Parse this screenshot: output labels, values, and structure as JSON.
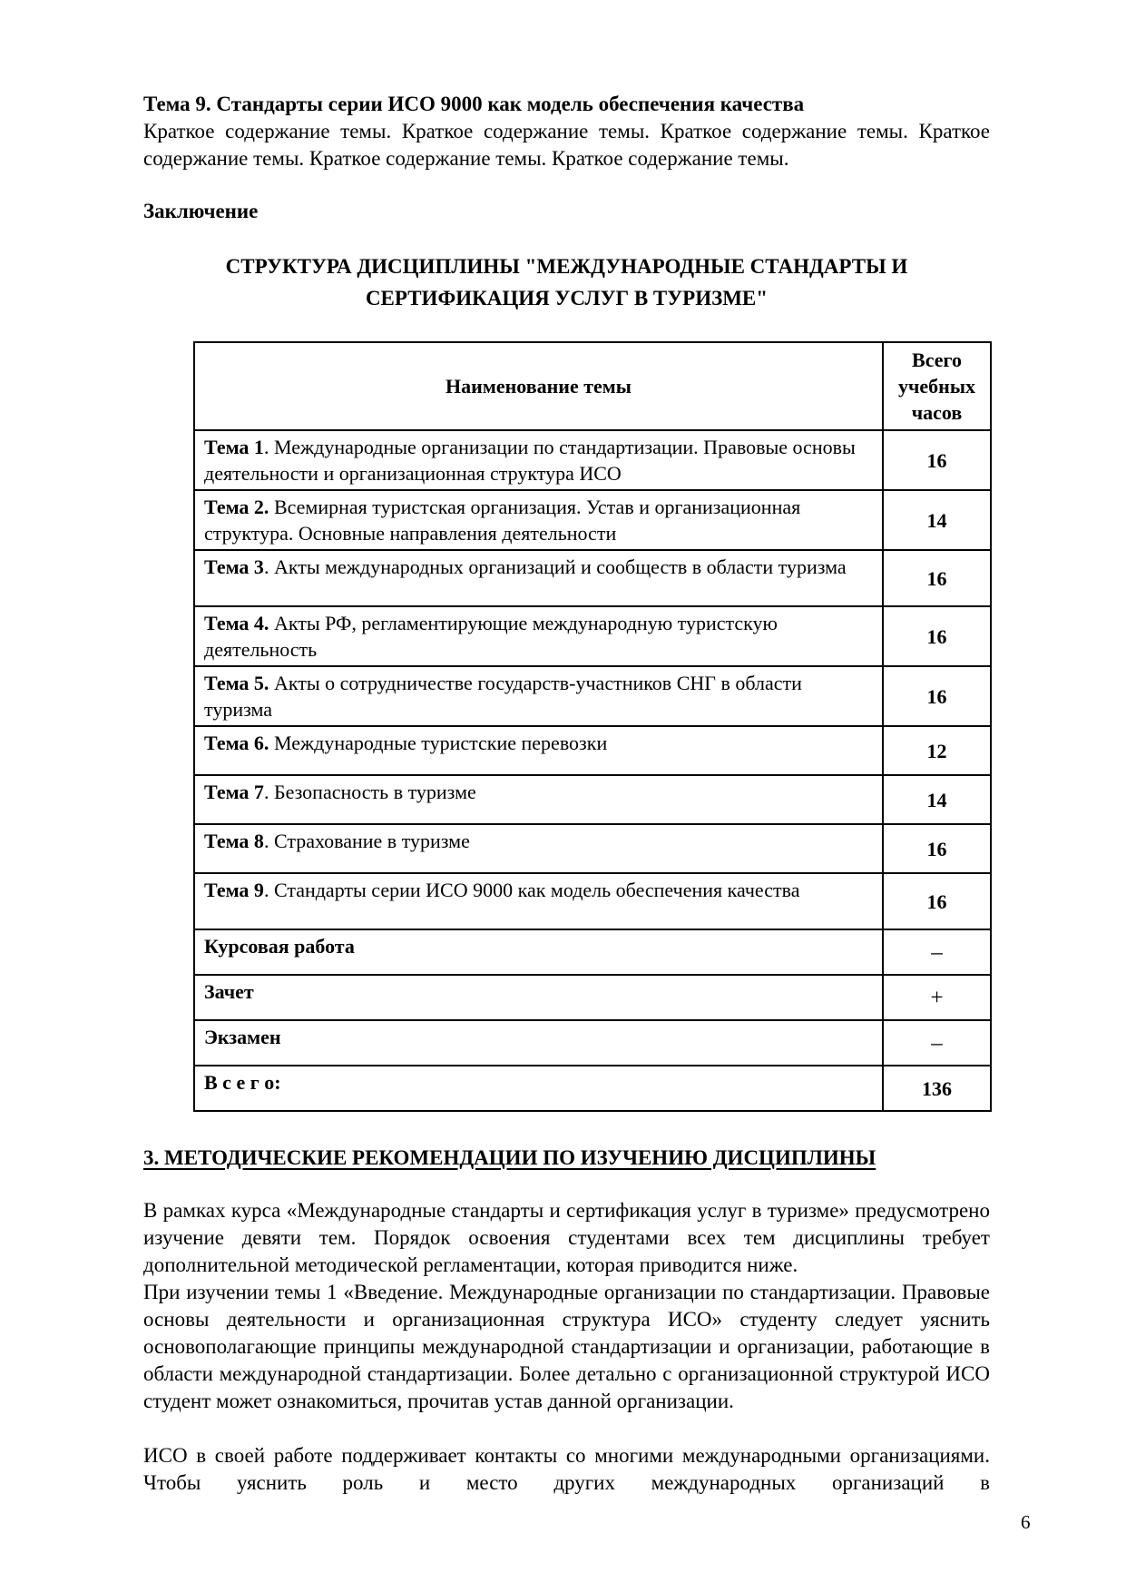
{
  "page": {
    "number": "6"
  },
  "intro": {
    "heading": "Тема 9. Стандарты серии ИСО 9000 как модель обеспечения качества",
    "body": "Краткое содержание темы. Краткое содержание темы. Краткое содержание темы. Краткое содержание темы. Краткое содержание темы. Краткое содержание темы."
  },
  "conclusion_heading": "Заключение",
  "table_title": "СТРУКТУРА ДИСЦИПЛИНЫ \"МЕЖДУНАРОДНЫЕ СТАНДАРТЫ И СЕРТИФИКАЦИЯ УСЛУГ В ТУРИЗМЕ\"",
  "table": {
    "header": {
      "name": "Наименование темы",
      "hours": "Всего учебных часов"
    },
    "rows": [
      {
        "label": "Тема 1",
        "text": ". Международные организации по стандартизации. Правовые основы деятельности и организационная структура ИСО",
        "hours": "16"
      },
      {
        "label": "Тема 2.",
        "text": " Всемирная туристская организация. Устав и организационная структура. Основные направления деятельности",
        "hours": "14"
      },
      {
        "label": "Тема 3",
        "text": ". Акты международных организаций и сообществ в области туризма",
        "hours": "16"
      },
      {
        "label": "Тема 4.",
        "text": " Акты РФ, регламентирующие международную туристскую деятельность",
        "hours": "16"
      },
      {
        "label": "Тема 5.",
        "text": " Акты о сотрудничестве государств-участников СНГ в области туризма",
        "hours": "16"
      },
      {
        "label": "Тема 6.",
        "text": " Международные туристские перевозки",
        "hours": "12"
      },
      {
        "label": "Тема 7",
        "text": ". Безопасность в туризме",
        "hours": "14"
      },
      {
        "label": "Тема 8",
        "text": ". Страхование в туризме",
        "hours": "16"
      },
      {
        "label": "Тема 9",
        "text": ". Стандарты серии ИСО 9000 как модель обеспечения качества",
        "hours": "16"
      },
      {
        "label": "Курсовая работа",
        "text": "",
        "hours": "–"
      },
      {
        "label": "Зачет",
        "text": "",
        "hours": "+"
      },
      {
        "label": "Экзамен",
        "text": "",
        "hours": "–"
      },
      {
        "label": "В с е г о:",
        "text": "",
        "hours": "136"
      }
    ]
  },
  "section": {
    "heading": "3. МЕТОДИЧЕСКИЕ РЕКОМЕНДАЦИИ ПО ИЗУЧЕНИЮ ДИСЦИПЛИНЫ",
    "para1": "В рамках курса «Международные стандарты и сертификация услуг в туризме» предусмотрено изучение девяти тем. Порядок освоения студентами всех тем дисциплины требует дополнительной методической регламентации, которая приводится ниже.",
    "para2": "При изучении темы 1 «Введение. Международные организации по стандартизации. Правовые основы деятельности и организационная структура ИСО» студенту следует уяснить основополагающие принципы международной стандартизации и организации, работающие в области международной стандартизации. Более детально с организационной структурой ИСО студент может ознакомиться, прочитав устав данной организации.",
    "para3": "ИСО в своей работе поддерживает контакты со многими международными организациями. Чтобы уяснить роль и место других международных организаций в"
  }
}
